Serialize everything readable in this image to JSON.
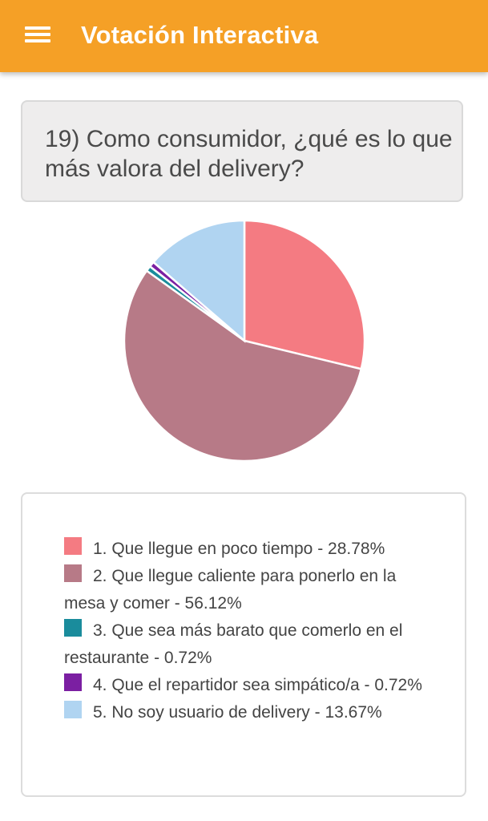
{
  "app": {
    "title": "Votación Interactiva"
  },
  "question": {
    "text": "19) Como consumidor, ¿qué es lo que más valora del delivery?"
  },
  "legend": {
    "items": [
      {
        "label": "1. Que llegue en poco tiempo - 28.78%",
        "color": "#f47b82"
      },
      {
        "label": "2. Que llegue caliente para ponerlo en la mesa y comer - 56.12%",
        "color": "#b77a87"
      },
      {
        "label": "3. Que sea más barato que comerlo en el restaurante - 0.72%",
        "color": "#1a8c9c"
      },
      {
        "label": "4. Que el repartidor sea simpático/a - 0.72%",
        "color": "#7b1fa2"
      },
      {
        "label": "5. No soy usuario de delivery - 13.67%",
        "color": "#b0d4f1"
      }
    ]
  },
  "chart_data": {
    "type": "pie",
    "categories": [
      "1. Que llegue en poco tiempo",
      "2. Que llegue caliente para ponerlo en la mesa y comer",
      "3. Que sea más barato que comerlo en el restaurante",
      "4. Que el repartidor sea simpático/a",
      "5. No soy usuario de delivery"
    ],
    "values": [
      28.78,
      56.12,
      0.72,
      0.72,
      13.67
    ],
    "colors": [
      "#f47b82",
      "#b77a87",
      "#1a8c9c",
      "#7b1fa2",
      "#b0d4f1"
    ],
    "start_angle": "12 o'clock",
    "direction": "clockwise"
  }
}
